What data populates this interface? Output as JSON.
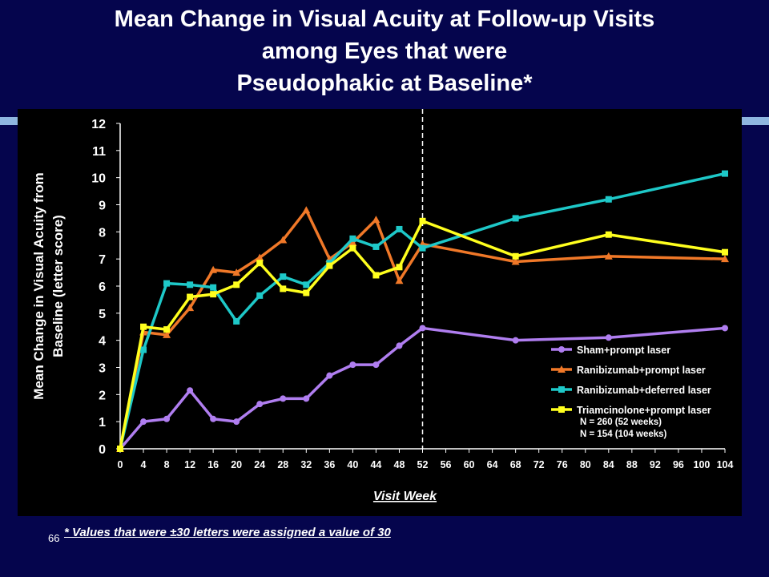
{
  "title_lines": [
    "Mean Change in Visual Acuity at Follow-up Visits",
    "among Eyes that were",
    "Pseudophakic at Baseline*"
  ],
  "footnote": "* Values that were ±30 letters were assigned a value of 30",
  "page_number": "66",
  "chart_data": {
    "type": "line",
    "xlabel": "Visit Week",
    "ylabel_lines": [
      "Mean Change in Visual Acuity from",
      "Baseline (letter score)"
    ],
    "xlim": [
      0,
      104
    ],
    "ylim": [
      0,
      12
    ],
    "x_ticks": [
      0,
      4,
      8,
      12,
      16,
      20,
      24,
      28,
      32,
      36,
      40,
      44,
      48,
      52,
      56,
      60,
      64,
      68,
      72,
      76,
      80,
      84,
      88,
      92,
      96,
      100,
      104
    ],
    "y_ticks": [
      0,
      1,
      2,
      3,
      4,
      5,
      6,
      7,
      8,
      9,
      10,
      11,
      12
    ],
    "vertical_reference_x": 52,
    "legend_placement": "bottom-right",
    "notes": [
      "N = 260 (52 weeks)",
      "N = 154 (104 weeks)"
    ],
    "colors": {
      "Sham+prompt laser": "#b07ef0",
      "Ranibizumab+prompt laser": "#f07828",
      "Ranibizumab+deferred laser": "#1ec8c8",
      "Triamcinolone+prompt laser": "#ffff1e"
    },
    "series": [
      {
        "name": "Sham+prompt laser",
        "marker": "circle",
        "x": [
          0,
          4,
          8,
          12,
          16,
          20,
          24,
          28,
          32,
          36,
          40,
          44,
          48,
          52,
          68,
          84,
          104
        ],
        "y": [
          0,
          1.0,
          1.1,
          2.15,
          1.1,
          1.0,
          1.65,
          1.85,
          1.85,
          2.7,
          3.1,
          3.1,
          3.8,
          4.45,
          4.0,
          4.1,
          4.45
        ]
      },
      {
        "name": "Ranibizumab+prompt laser",
        "marker": "triangle",
        "x": [
          0,
          4,
          8,
          12,
          16,
          20,
          24,
          28,
          32,
          36,
          40,
          44,
          48,
          52,
          68,
          84,
          104
        ],
        "y": [
          0,
          4.3,
          4.2,
          5.2,
          6.6,
          6.5,
          7.05,
          7.7,
          8.8,
          7.0,
          7.6,
          8.45,
          6.2,
          7.55,
          6.9,
          7.1,
          7.0
        ]
      },
      {
        "name": "Ranibizumab+deferred laser",
        "marker": "square",
        "x": [
          0,
          4,
          8,
          12,
          16,
          20,
          24,
          28,
          32,
          36,
          40,
          44,
          48,
          52,
          68,
          84,
          104
        ],
        "y": [
          0,
          3.65,
          6.1,
          6.05,
          5.95,
          4.7,
          5.65,
          6.35,
          6.05,
          6.85,
          7.75,
          7.45,
          8.1,
          7.4,
          8.5,
          9.2,
          10.15
        ]
      },
      {
        "name": "Triamcinolone+prompt laser",
        "marker": "square",
        "x": [
          0,
          4,
          8,
          12,
          16,
          20,
          24,
          28,
          32,
          36,
          40,
          44,
          48,
          52,
          68,
          84,
          104
        ],
        "y": [
          0,
          4.5,
          4.4,
          5.6,
          5.7,
          6.05,
          6.85,
          5.9,
          5.75,
          6.75,
          7.4,
          6.4,
          6.7,
          8.4,
          7.1,
          7.9,
          7.25
        ]
      }
    ]
  }
}
